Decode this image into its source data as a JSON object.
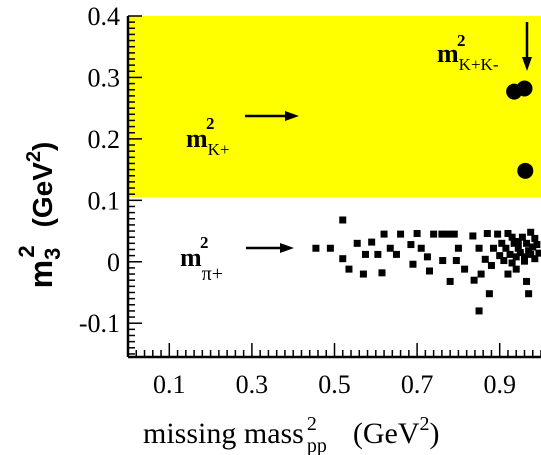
{
  "chart_data": {
    "type": "scatter",
    "xlabel": {
      "main": "missing mass",
      "sup": "2",
      "sub": "pp",
      "unit_open": "(GeV",
      "unit_sup": "2",
      "unit_close": ")"
    },
    "ylabel": {
      "m": "m",
      "sup": "2",
      "sub": "3",
      "unit_open": "(GeV",
      "unit_sup": "2",
      "unit_close": ")"
    },
    "xlim": [
      0.0,
      1.0
    ],
    "ylim": [
      -0.155,
      0.4
    ],
    "xticks": [
      "0.1",
      "0.3",
      "0.5",
      "0.7",
      "0.9"
    ],
    "xtick_values": [
      0.1,
      0.3,
      0.5,
      0.7,
      0.9
    ],
    "yticks": [
      "-0.1",
      "0",
      "0.1",
      "0.2",
      "0.3",
      "0.4"
    ],
    "ytick_values": [
      -0.1,
      0.0,
      0.1,
      0.2,
      0.3,
      0.4
    ],
    "highlight_band": {
      "y_from": 0.105,
      "y_to": 0.4,
      "color": "#ffff00"
    },
    "annotations": [
      {
        "id": "kplus",
        "base": "m",
        "sup": "2",
        "sub": "K+",
        "arrow": "right"
      },
      {
        "id": "piplus",
        "base": "m",
        "sup": "2",
        "sub": "π+",
        "arrow": "right"
      },
      {
        "id": "kk",
        "base": "m",
        "sup": "2",
        "sub": "K+K-",
        "arrow": "down"
      }
    ],
    "series": [
      {
        "marker": "circle",
        "points": [
          [
            0.935,
            0.277
          ],
          [
            0.96,
            0.282
          ],
          [
            0.962,
            0.148
          ]
        ]
      },
      {
        "marker": "square",
        "points": [
          [
            0.455,
            0.022
          ],
          [
            0.49,
            0.022
          ],
          [
            0.52,
            0.068
          ],
          [
            0.52,
            0.005
          ],
          [
            0.535,
            -0.012
          ],
          [
            0.555,
            0.03
          ],
          [
            0.57,
            -0.02
          ],
          [
            0.575,
            0.012
          ],
          [
            0.59,
            0.032
          ],
          [
            0.605,
            0.012
          ],
          [
            0.615,
            -0.018
          ],
          [
            0.62,
            0.045
          ],
          [
            0.635,
            0.022
          ],
          [
            0.65,
            0.012
          ],
          [
            0.66,
            0.045
          ],
          [
            0.685,
            0.028
          ],
          [
            0.69,
            -0.004
          ],
          [
            0.7,
            0.046
          ],
          [
            0.71,
            0.022
          ],
          [
            0.725,
            0.008
          ],
          [
            0.73,
            -0.015
          ],
          [
            0.74,
            0.045
          ],
          [
            0.76,
            0.045
          ],
          [
            0.762,
            0.002
          ],
          [
            0.775,
            0.045
          ],
          [
            0.78,
            -0.032
          ],
          [
            0.79,
            0.045
          ],
          [
            0.795,
            0.002
          ],
          [
            0.8,
            0.022
          ],
          [
            0.815,
            -0.012
          ],
          [
            0.835,
            0.042
          ],
          [
            0.838,
            -0.03
          ],
          [
            0.85,
            0.022
          ],
          [
            0.855,
            -0.02
          ],
          [
            0.865,
            0.004
          ],
          [
            0.87,
            0.046
          ],
          [
            0.875,
            -0.052
          ],
          [
            0.88,
            -0.006
          ],
          [
            0.885,
            0.022
          ],
          [
            0.895,
            0.045
          ],
          [
            0.9,
            0.01
          ],
          [
            0.905,
            0.03
          ],
          [
            0.91,
            0.002
          ],
          [
            0.915,
            0.022
          ],
          [
            0.92,
            0.046
          ],
          [
            0.925,
            0.012
          ],
          [
            0.93,
            -0.002
          ],
          [
            0.935,
            0.03
          ],
          [
            0.94,
            0.008
          ],
          [
            0.945,
            0.022
          ],
          [
            0.95,
            0.015
          ],
          [
            0.955,
            0.04
          ],
          [
            0.96,
            0.008
          ],
          [
            0.965,
            0.03
          ],
          [
            0.97,
            0.018
          ],
          [
            0.975,
            0.048
          ],
          [
            0.98,
            0.024
          ],
          [
            0.985,
            0.005
          ],
          [
            0.99,
            0.028
          ],
          [
            0.995,
            0.014
          ],
          [
            0.965,
            -0.032
          ],
          [
            0.94,
            -0.012
          ],
          [
            0.93,
            0.04
          ],
          [
            0.92,
            -0.02
          ],
          [
            0.85,
            -0.08
          ],
          [
            0.97,
            -0.052
          ],
          [
            0.945,
            0.033
          ],
          [
            0.96,
            0.001
          ],
          [
            0.975,
            0.012
          ],
          [
            0.985,
            0.038
          ]
        ]
      }
    ]
  }
}
